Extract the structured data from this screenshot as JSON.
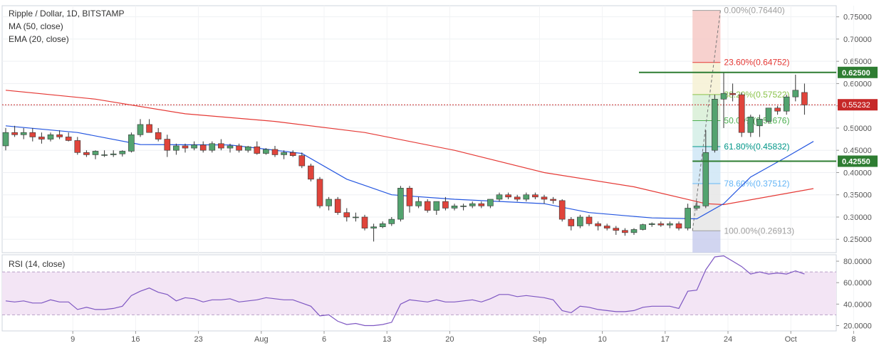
{
  "chart_data": [
    {
      "type": "candlestick",
      "title": "Ripple / Dollar, 1D, BITSTAMP",
      "indicators": [
        "MA (50, close)",
        "EMA (20, close)"
      ],
      "ylim": [
        0.22,
        0.775
      ],
      "y_ticks": [
        "0.25000",
        "0.30000",
        "0.35000",
        "0.40000",
        "0.45000",
        "0.50000",
        "0.55000",
        "0.60000",
        "0.65000",
        "0.70000",
        "0.75000"
      ],
      "x_ticks": [
        "9",
        "16",
        "23",
        "Aug",
        "6",
        "13",
        "20",
        "Sep",
        "10",
        "17",
        "24",
        "Oct",
        "8"
      ],
      "candles": [
        [
          0.46,
          0.5,
          0.45,
          0.49
        ],
        [
          0.49,
          0.505,
          0.48,
          0.485
        ],
        [
          0.485,
          0.5,
          0.475,
          0.49
        ],
        [
          0.49,
          0.5,
          0.47,
          0.48
        ],
        [
          0.48,
          0.49,
          0.465,
          0.475
        ],
        [
          0.475,
          0.49,
          0.47,
          0.485
        ],
        [
          0.485,
          0.495,
          0.475,
          0.48
        ],
        [
          0.48,
          0.49,
          0.47,
          0.472
        ],
        [
          0.472,
          0.48,
          0.44,
          0.445
        ],
        [
          0.445,
          0.45,
          0.435,
          0.44
        ],
        [
          0.44,
          0.45,
          0.43,
          0.448
        ],
        [
          0.44,
          0.45,
          0.435,
          0.44
        ],
        [
          0.44,
          0.45,
          0.435,
          0.442
        ],
        [
          0.442,
          0.45,
          0.436,
          0.448
        ],
        [
          0.448,
          0.49,
          0.445,
          0.485
        ],
        [
          0.485,
          0.52,
          0.48,
          0.508
        ],
        [
          0.508,
          0.52,
          0.49,
          0.49
        ],
        [
          0.49,
          0.5,
          0.47,
          0.475
        ],
        [
          0.475,
          0.485,
          0.435,
          0.45
        ],
        [
          0.45,
          0.465,
          0.44,
          0.46
        ],
        [
          0.46,
          0.465,
          0.445,
          0.455
        ],
        [
          0.455,
          0.47,
          0.45,
          0.462
        ],
        [
          0.462,
          0.47,
          0.445,
          0.45
        ],
        [
          0.45,
          0.47,
          0.445,
          0.465
        ],
        [
          0.465,
          0.475,
          0.45,
          0.455
        ],
        [
          0.455,
          0.465,
          0.445,
          0.46
        ],
        [
          0.46,
          0.465,
          0.445,
          0.45
        ],
        [
          0.45,
          0.46,
          0.445,
          0.458
        ],
        [
          0.458,
          0.47,
          0.44,
          0.443
        ],
        [
          0.443,
          0.455,
          0.44,
          0.452
        ],
        [
          0.452,
          0.46,
          0.435,
          0.44
        ],
        [
          0.44,
          0.45,
          0.43,
          0.445
        ],
        [
          0.445,
          0.45,
          0.435,
          0.438
        ],
        [
          0.438,
          0.445,
          0.41,
          0.415
        ],
        [
          0.415,
          0.42,
          0.38,
          0.385
        ],
        [
          0.385,
          0.39,
          0.32,
          0.325
        ],
        [
          0.325,
          0.345,
          0.315,
          0.34
        ],
        [
          0.34,
          0.345,
          0.305,
          0.31
        ],
        [
          0.31,
          0.32,
          0.29,
          0.3
        ],
        [
          0.3,
          0.31,
          0.29,
          0.3
        ],
        [
          0.3,
          0.305,
          0.27,
          0.275
        ],
        [
          0.275,
          0.285,
          0.245,
          0.278
        ],
        [
          0.278,
          0.29,
          0.275,
          0.285
        ],
        [
          0.285,
          0.3,
          0.28,
          0.295
        ],
        [
          0.295,
          0.37,
          0.29,
          0.365
        ],
        [
          0.365,
          0.37,
          0.31,
          0.325
        ],
        [
          0.325,
          0.345,
          0.32,
          0.335
        ],
        [
          0.335,
          0.34,
          0.31,
          0.315
        ],
        [
          0.315,
          0.335,
          0.305,
          0.335
        ],
        [
          0.335,
          0.345,
          0.315,
          0.32
        ],
        [
          0.32,
          0.33,
          0.315,
          0.325
        ],
        [
          0.325,
          0.33,
          0.315,
          0.325
        ],
        [
          0.325,
          0.335,
          0.32,
          0.33
        ],
        [
          0.33,
          0.335,
          0.32,
          0.325
        ],
        [
          0.325,
          0.34,
          0.32,
          0.34
        ],
        [
          0.34,
          0.355,
          0.335,
          0.35
        ],
        [
          0.35,
          0.355,
          0.34,
          0.345
        ],
        [
          0.345,
          0.35,
          0.335,
          0.34
        ],
        [
          0.34,
          0.355,
          0.335,
          0.35
        ],
        [
          0.35,
          0.355,
          0.34,
          0.345
        ],
        [
          0.345,
          0.35,
          0.33,
          0.34
        ],
        [
          0.34,
          0.345,
          0.33,
          0.337
        ],
        [
          0.337,
          0.34,
          0.29,
          0.295
        ],
        [
          0.295,
          0.3,
          0.27,
          0.28
        ],
        [
          0.28,
          0.305,
          0.275,
          0.3
        ],
        [
          0.3,
          0.305,
          0.28,
          0.285
        ],
        [
          0.285,
          0.29,
          0.27,
          0.28
        ],
        [
          0.28,
          0.285,
          0.27,
          0.275
        ],
        [
          0.275,
          0.28,
          0.26,
          0.27
        ],
        [
          0.27,
          0.275,
          0.258,
          0.265
        ],
        [
          0.265,
          0.275,
          0.26,
          0.272
        ],
        [
          0.272,
          0.285,
          0.27,
          0.283
        ],
        [
          0.283,
          0.288,
          0.278,
          0.285
        ],
        [
          0.285,
          0.29,
          0.278,
          0.282
        ],
        [
          0.282,
          0.29,
          0.275,
          0.285
        ],
        [
          0.285,
          0.29,
          0.27,
          0.275
        ],
        [
          0.275,
          0.33,
          0.27,
          0.32
        ],
        [
          0.32,
          0.335,
          0.315,
          0.325
        ],
        [
          0.325,
          0.495,
          0.32,
          0.445
        ],
        [
          0.45,
          0.575,
          0.445,
          0.565
        ],
        [
          0.565,
          0.625,
          0.5,
          0.578
        ],
        [
          0.578,
          0.6,
          0.56,
          0.575
        ],
        [
          0.575,
          0.58,
          0.48,
          0.49
        ],
        [
          0.49,
          0.53,
          0.48,
          0.525
        ],
        [
          0.505,
          0.53,
          0.48,
          0.52
        ],
        [
          0.515,
          0.545,
          0.51,
          0.545
        ],
        [
          0.545,
          0.55,
          0.53,
          0.538
        ],
        [
          0.538,
          0.575,
          0.53,
          0.57
        ],
        [
          0.57,
          0.62,
          0.56,
          0.585
        ],
        [
          0.58,
          0.6,
          0.53,
          0.552
        ]
      ],
      "ma50": [
        [
          0,
          0.585
        ],
        [
          10,
          0.565
        ],
        [
          20,
          0.532
        ],
        [
          30,
          0.515
        ],
        [
          40,
          0.49
        ],
        [
          50,
          0.45
        ],
        [
          60,
          0.4
        ],
        [
          70,
          0.368
        ],
        [
          78,
          0.33
        ],
        [
          80,
          0.328
        ],
        [
          90,
          0.364
        ]
      ],
      "ema20": [
        [
          0,
          0.505
        ],
        [
          8,
          0.49
        ],
        [
          15,
          0.463
        ],
        [
          25,
          0.462
        ],
        [
          33,
          0.443
        ],
        [
          38,
          0.385
        ],
        [
          43,
          0.35
        ],
        [
          50,
          0.34
        ],
        [
          60,
          0.33
        ],
        [
          65,
          0.31
        ],
        [
          72,
          0.298
        ],
        [
          77,
          0.296
        ],
        [
          80,
          0.33
        ],
        [
          83,
          0.39
        ],
        [
          87,
          0.435
        ],
        [
          90,
          0.47
        ]
      ],
      "current_price": "0.55232",
      "horizontal_levels": [
        "0.62500",
        "0.42550"
      ],
      "fibonacci": {
        "high": 0.7644,
        "low": 0.26913,
        "levels": [
          {
            "label": "0.00%(0.76440)",
            "value": 0.7644,
            "color": "#9e9e9e"
          },
          {
            "label": "23.60%(0.64752)",
            "value": 0.64752,
            "color": "#e53935"
          },
          {
            "label": "38.20%(0.57522)",
            "value": 0.57522,
            "color": "#8bc34a"
          },
          {
            "label": "50.00%(0.51676)",
            "value": 0.51676,
            "color": "#4caf50"
          },
          {
            "label": "61.80%(0.45832)",
            "value": 0.45832,
            "color": "#009688"
          },
          {
            "label": "78.60%(0.37512)",
            "value": 0.37512,
            "color": "#64b5f6"
          },
          {
            "label": "100.00%(0.26913)",
            "value": 0.26913,
            "color": "#9e9e9e"
          }
        ]
      },
      "colors": {
        "up": "#53a36f",
        "down": "#e0443b",
        "ma50": "#e53935",
        "ema20": "#2456e0",
        "level": "#2e7d32",
        "price": "#c62828"
      }
    },
    {
      "type": "line",
      "title": "RSI (14, close)",
      "ylim": [
        15,
        86
      ],
      "y_ticks": [
        "20.0000",
        "40.0000",
        "60.0000",
        "80.0000"
      ],
      "bands": [
        30,
        70
      ],
      "values": [
        43,
        42,
        43,
        41,
        41,
        44,
        42,
        42,
        35,
        37,
        35,
        35,
        36,
        38,
        48,
        52,
        55,
        51,
        49,
        43,
        46,
        45,
        42,
        44,
        44,
        45,
        42,
        43,
        44,
        46,
        45,
        44,
        44,
        41,
        38,
        29,
        30,
        24,
        21,
        22,
        20,
        20,
        21,
        23,
        40,
        44,
        43,
        42,
        44,
        42,
        42,
        43,
        44,
        42,
        45,
        49,
        49,
        47,
        48,
        47,
        46,
        44,
        34,
        32,
        38,
        37,
        35,
        34,
        33,
        33,
        34,
        37,
        38,
        38,
        38,
        36,
        52,
        53,
        72,
        84,
        85,
        80,
        75,
        68,
        70,
        68,
        69,
        68,
        71,
        68
      ],
      "color": "#7e57c2"
    }
  ]
}
